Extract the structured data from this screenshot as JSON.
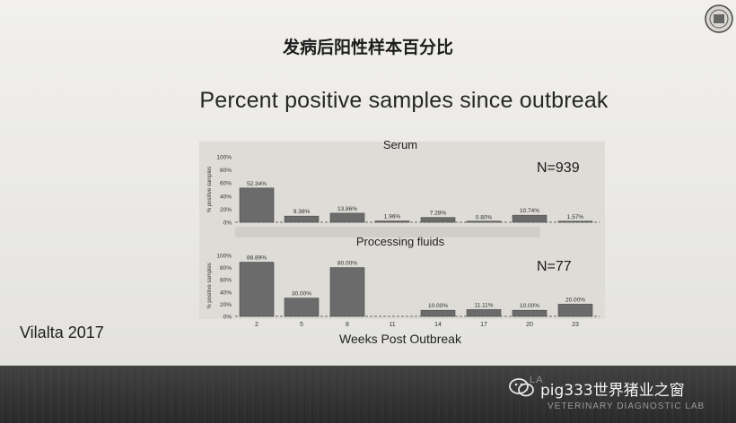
{
  "slide": {
    "title_cn": "发病后阳性样本百分比",
    "title_en": "Percent positive samples since outbreak",
    "citation": "Vilalta 2017",
    "watermark": "pig333世界猪业之窗",
    "footer_institution": "LA",
    "footer_lab": "VETERINARY DIAGNOSTIC LAB",
    "logo_icon": "seal-icon",
    "watermark_icon": "wechat-icon"
  },
  "chart_data": [
    {
      "type": "bar",
      "title": "Serum",
      "annotation": "N=939",
      "ylabel": "% positive samples",
      "ylim": [
        0,
        100
      ],
      "yticks": [
        "0%",
        "20%",
        "40%",
        "60%",
        "80%",
        "100%"
      ],
      "categories": [
        "2",
        "5",
        "8",
        "11",
        "14",
        "17",
        "20",
        "23"
      ],
      "values": [
        52.34,
        9.38,
        13.86,
        1.96,
        7.28,
        0.8,
        10.74,
        1.57
      ],
      "labels": [
        "52.34%",
        "9.38%",
        "13.86%",
        "1.96%",
        "7.28%",
        "0.80%",
        "10.74%",
        "1.57%"
      ]
    },
    {
      "type": "bar",
      "title": "Processing fluids",
      "annotation": "N=77",
      "ylabel": "% positive samples",
      "ylim": [
        0,
        100
      ],
      "yticks": [
        "0%",
        "20%",
        "40%",
        "60%",
        "80%",
        "100%"
      ],
      "categories": [
        "2",
        "5",
        "8",
        "11",
        "14",
        "17",
        "20",
        "23"
      ],
      "values": [
        88.89,
        30.0,
        80.0,
        null,
        10.0,
        11.11,
        10.0,
        20.0
      ],
      "labels": [
        "88.89%",
        "30.00%",
        "80.00%",
        "",
        "10.00%",
        "11.11%",
        "10.00%",
        "20.00%"
      ],
      "xlabel": "Weeks Post Outbreak"
    }
  ]
}
